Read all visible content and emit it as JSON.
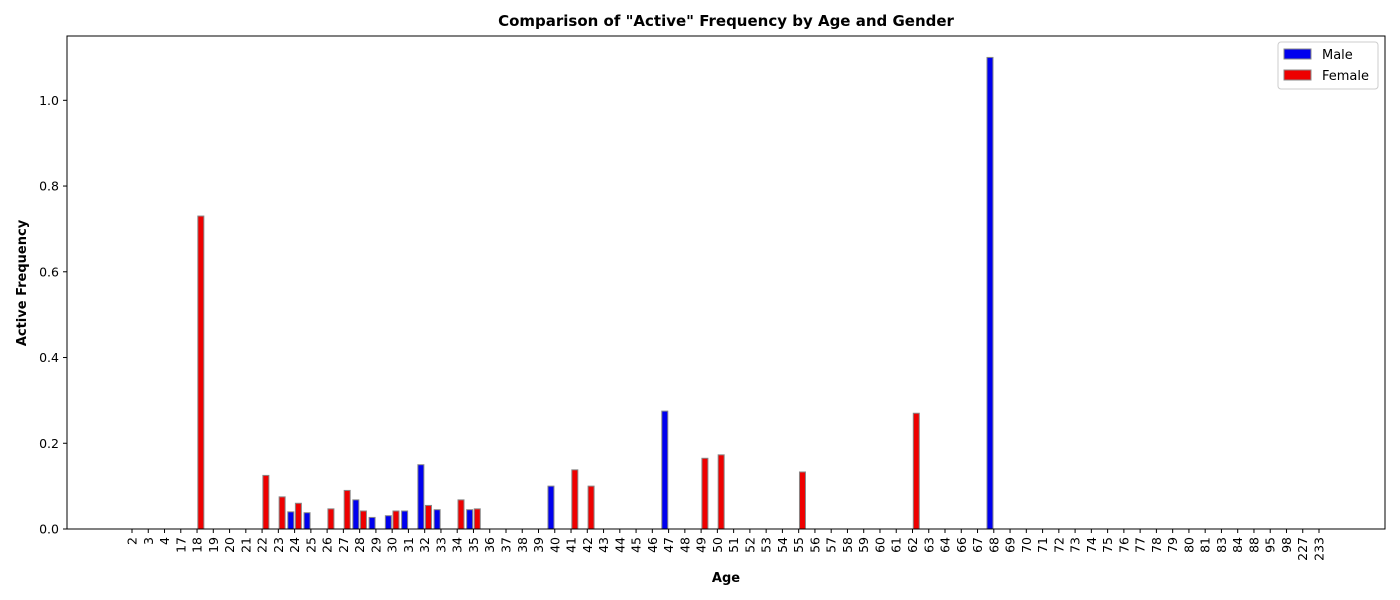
{
  "chart_data": {
    "type": "bar",
    "title": "Comparison of \"Active\" Frequency by Age and Gender",
    "xlabel": "Age",
    "ylabel": "Active Frequency",
    "ylim": [
      0,
      1.15
    ],
    "yticks": [
      "0.0",
      "0.2",
      "0.4",
      "0.6",
      "0.8",
      "1.0"
    ],
    "grid": false,
    "legend_position": "top-right",
    "categories": [
      "2",
      "3",
      "4",
      "17",
      "18",
      "19",
      "20",
      "21",
      "22",
      "23",
      "24",
      "25",
      "26",
      "27",
      "28",
      "29",
      "30",
      "31",
      "32",
      "33",
      "34",
      "35",
      "36",
      "37",
      "38",
      "39",
      "40",
      "41",
      "42",
      "43",
      "44",
      "45",
      "46",
      "47",
      "48",
      "49",
      "50",
      "51",
      "52",
      "53",
      "54",
      "55",
      "56",
      "57",
      "58",
      "59",
      "60",
      "61",
      "62",
      "63",
      "64",
      "66",
      "67",
      "68",
      "69",
      "70",
      "71",
      "72",
      "73",
      "74",
      "75",
      "76",
      "77",
      "78",
      "79",
      "80",
      "81",
      "83",
      "84",
      "88",
      "95",
      "98",
      "227",
      "233"
    ],
    "series": [
      {
        "name": "Male",
        "color": "#0000ee",
        "values": [
          0,
          0,
          0,
          0,
          0,
          0,
          0,
          0,
          0,
          0,
          0.04,
          0.038,
          0,
          0,
          0.068,
          0.027,
          0.031,
          0.042,
          0.15,
          0.045,
          0,
          0.045,
          0,
          0,
          0,
          0,
          0.1,
          0,
          0,
          0,
          0,
          0,
          0,
          0.275,
          0,
          0,
          0,
          0,
          0,
          0,
          0,
          0,
          0,
          0,
          0,
          0,
          0,
          0,
          0,
          0,
          0,
          0,
          0,
          1.1,
          0,
          0,
          0,
          0,
          0,
          0,
          0,
          0,
          0,
          0,
          0,
          0,
          0,
          0,
          0,
          0,
          0,
          0,
          0,
          0
        ]
      },
      {
        "name": "Female",
        "color": "#ee0000",
        "values": [
          0,
          0,
          0,
          0,
          0.73,
          0,
          0,
          0,
          0.125,
          0.075,
          0.06,
          0,
          0.047,
          0.09,
          0.042,
          0,
          0.042,
          0,
          0.055,
          0,
          0.068,
          0.047,
          0,
          0,
          0,
          0,
          0,
          0.138,
          0.1,
          0,
          0,
          0,
          0,
          0,
          0,
          0.165,
          0.173,
          0,
          0,
          0,
          0,
          0.133,
          0,
          0,
          0,
          0,
          0,
          0,
          0.27,
          0,
          0,
          0,
          0,
          0,
          0,
          0,
          0,
          0,
          0,
          0,
          0,
          0,
          0,
          0,
          0,
          0,
          0,
          0,
          0,
          0,
          0,
          0,
          0,
          0
        ]
      }
    ]
  }
}
